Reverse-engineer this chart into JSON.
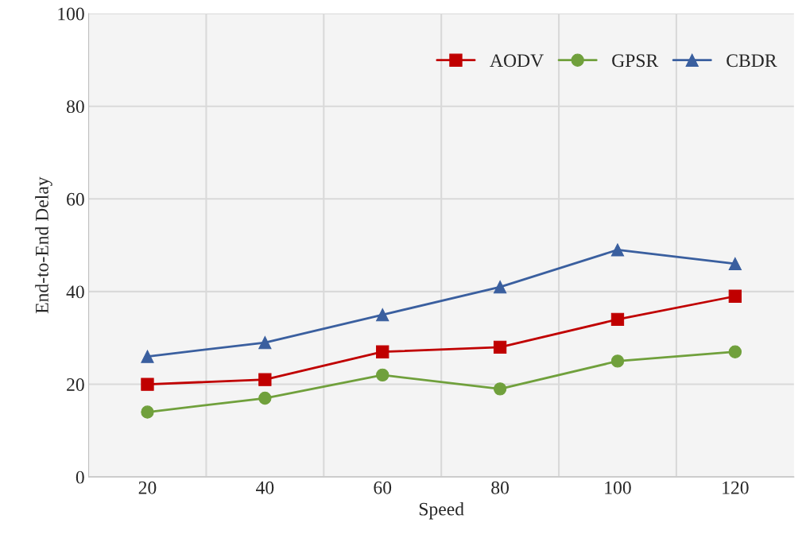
{
  "chart_data": {
    "type": "line",
    "xlabel": "Speed",
    "ylabel": "End-to-End Delay",
    "categories": [
      "20",
      "40",
      "60",
      "80",
      "100",
      "120"
    ],
    "series": [
      {
        "name": "AODV",
        "color": "#c00000",
        "marker": "square",
        "values": [
          20,
          21,
          27,
          28,
          34,
          39
        ]
      },
      {
        "name": "GPSR",
        "color": "#70a03c",
        "marker": "circle",
        "values": [
          14,
          17,
          22,
          19,
          25,
          27
        ]
      },
      {
        "name": "CBDR",
        "color": "#3a5f9f",
        "marker": "triangle",
        "values": [
          26,
          29,
          35,
          41,
          49,
          46
        ]
      }
    ],
    "ylim": [
      0,
      100
    ],
    "yticks": [
      0,
      20,
      40,
      60,
      80,
      100
    ],
    "grid": true,
    "legend": "top right",
    "line_style": "solid"
  }
}
